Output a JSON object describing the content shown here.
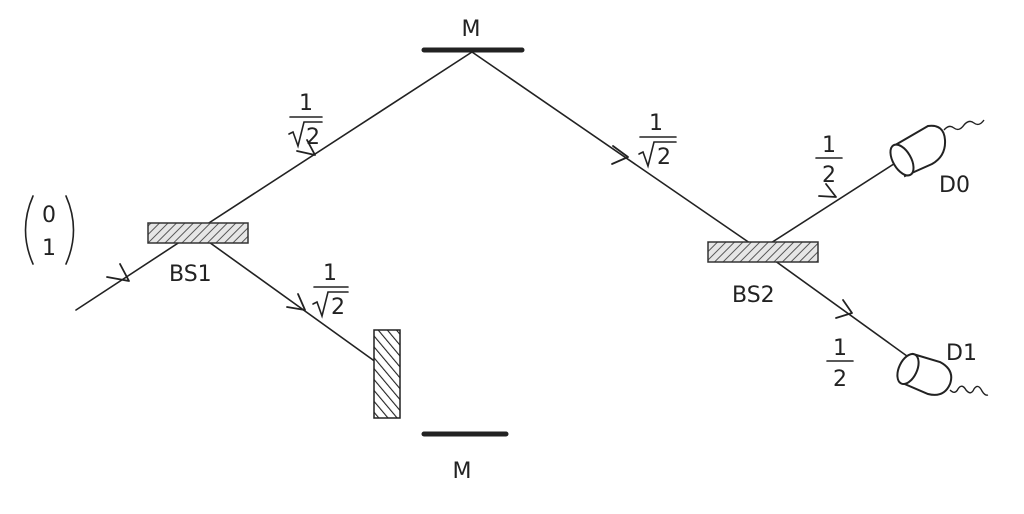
{
  "input_state": {
    "top": "0",
    "bottom": "1"
  },
  "beam_splitters": {
    "bs1": "BS1",
    "bs2": "BS2"
  },
  "mirrors": {
    "top": "M",
    "bottom": "M"
  },
  "detectors": {
    "d0": "D0",
    "d1": "D1"
  },
  "amplitudes": {
    "bs1_upper": {
      "num": "1",
      "den": "2"
    },
    "bs1_lower": {
      "num": "1",
      "den": "2"
    },
    "mirror_to_bs2": {
      "num": "1",
      "den": "2"
    },
    "to_d0": {
      "num": "1",
      "den": "2"
    },
    "to_d1": {
      "num": "1",
      "den": "2"
    }
  }
}
